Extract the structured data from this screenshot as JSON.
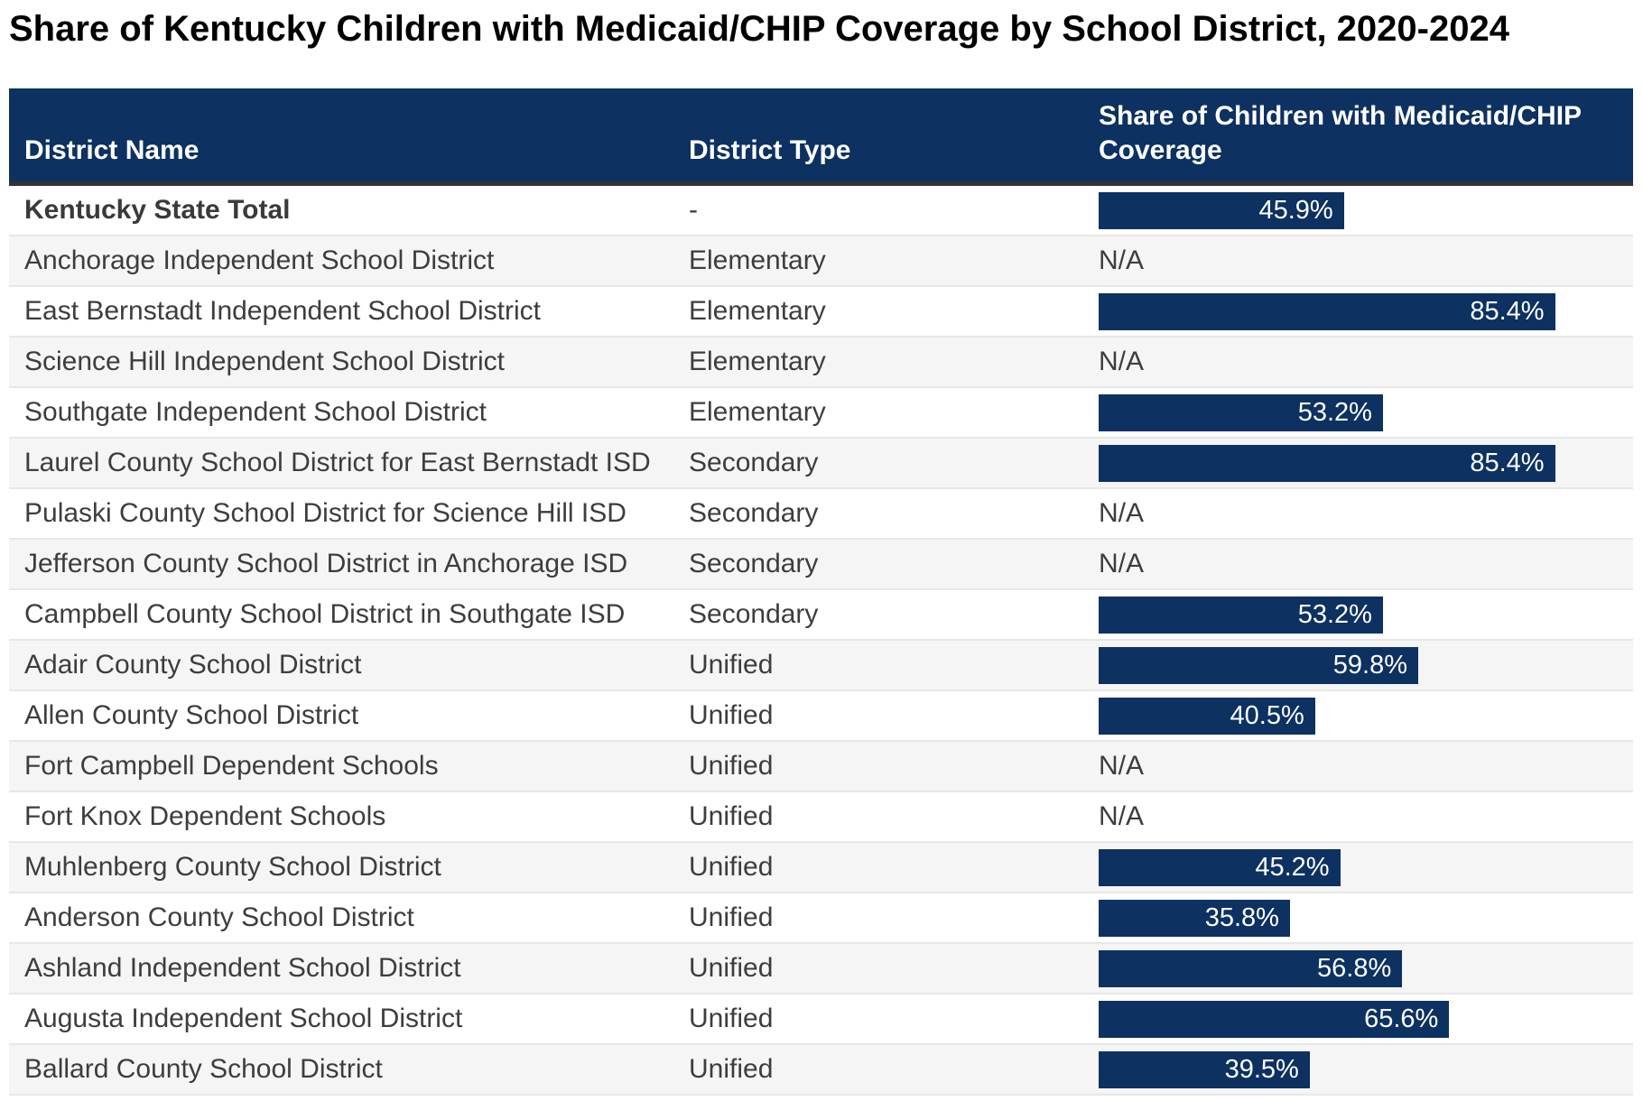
{
  "page": {
    "background": "#ffffff"
  },
  "colors": {
    "header_bg": "#0d3160",
    "header_text": "#ffffff",
    "header_border_bottom": "#333333",
    "bar_fill": "#0d3160",
    "bar_label": "#ffffff",
    "row_stripe": "#f5f5f5",
    "row_white": "#ffffff",
    "row_divider": "#e7e7e7",
    "body_text": "#3d3d3d",
    "title_text": "#000000"
  },
  "chart_data": {
    "type": "table",
    "title": "Share of Kentucky Children with Medicaid/CHIP Coverage by School District, 2020-2024",
    "columns": [
      "District Name",
      "District Type",
      "Share of Children with Medicaid/CHIP\nCoverage"
    ],
    "na_label": "N/A",
    "bar_axis": {
      "min": 0,
      "max": 100,
      "unit": "%"
    },
    "legend_position": "none",
    "rows": [
      {
        "district_name": "Kentucky State Total",
        "district_type": "-",
        "share_pct": 45.9,
        "share_label": "45.9%",
        "is_total": true
      },
      {
        "district_name": "Anchorage Independent School District",
        "district_type": "Elementary",
        "share_pct": null,
        "share_label": "N/A",
        "is_total": false
      },
      {
        "district_name": "East Bernstadt Independent School District",
        "district_type": "Elementary",
        "share_pct": 85.4,
        "share_label": "85.4%",
        "is_total": false
      },
      {
        "district_name": "Science Hill Independent School District",
        "district_type": "Elementary",
        "share_pct": null,
        "share_label": "N/A",
        "is_total": false
      },
      {
        "district_name": "Southgate Independent School District",
        "district_type": "Elementary",
        "share_pct": 53.2,
        "share_label": "53.2%",
        "is_total": false
      },
      {
        "district_name": "Laurel County School District for East Bernstadt ISD",
        "district_type": "Secondary",
        "share_pct": 85.4,
        "share_label": "85.4%",
        "is_total": false
      },
      {
        "district_name": "Pulaski County School District for Science Hill ISD",
        "district_type": "Secondary",
        "share_pct": null,
        "share_label": "N/A",
        "is_total": false
      },
      {
        "district_name": "Jefferson County School District in Anchorage ISD",
        "district_type": "Secondary",
        "share_pct": null,
        "share_label": "N/A",
        "is_total": false
      },
      {
        "district_name": "Campbell County School District in Southgate ISD",
        "district_type": "Secondary",
        "share_pct": 53.2,
        "share_label": "53.2%",
        "is_total": false
      },
      {
        "district_name": "Adair County School District",
        "district_type": "Unified",
        "share_pct": 59.8,
        "share_label": "59.8%",
        "is_total": false
      },
      {
        "district_name": "Allen County School District",
        "district_type": "Unified",
        "share_pct": 40.5,
        "share_label": "40.5%",
        "is_total": false
      },
      {
        "district_name": "Fort Campbell Dependent Schools",
        "district_type": "Unified",
        "share_pct": null,
        "share_label": "N/A",
        "is_total": false
      },
      {
        "district_name": "Fort Knox Dependent Schools",
        "district_type": "Unified",
        "share_pct": null,
        "share_label": "N/A",
        "is_total": false
      },
      {
        "district_name": "Muhlenberg County School District",
        "district_type": "Unified",
        "share_pct": 45.2,
        "share_label": "45.2%",
        "is_total": false
      },
      {
        "district_name": "Anderson County School District",
        "district_type": "Unified",
        "share_pct": 35.8,
        "share_label": "35.8%",
        "is_total": false
      },
      {
        "district_name": "Ashland Independent School District",
        "district_type": "Unified",
        "share_pct": 56.8,
        "share_label": "56.8%",
        "is_total": false
      },
      {
        "district_name": "Augusta Independent School District",
        "district_type": "Unified",
        "share_pct": 65.6,
        "share_label": "65.6%",
        "is_total": false
      },
      {
        "district_name": "Ballard County School District",
        "district_type": "Unified",
        "share_pct": 39.5,
        "share_label": "39.5%",
        "is_total": false
      }
    ]
  }
}
